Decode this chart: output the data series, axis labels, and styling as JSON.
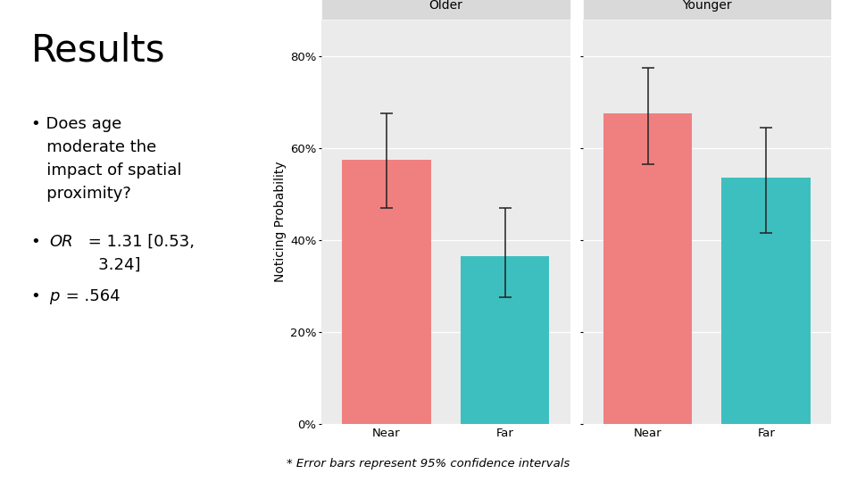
{
  "title": "Results",
  "footnote": "* Error bars represent 95% confidence intervals",
  "facet_labels": [
    "Older",
    "Younger"
  ],
  "x_labels": [
    "Near",
    "Far"
  ],
  "bar_values": {
    "Older": {
      "Near": 0.575,
      "Far": 0.365
    },
    "Younger": {
      "Near": 0.675,
      "Far": 0.535
    }
  },
  "ci_lower": {
    "Older": {
      "Near": 0.47,
      "Far": 0.275
    },
    "Younger": {
      "Near": 0.565,
      "Far": 0.415
    }
  },
  "ci_upper": {
    "Older": {
      "Near": 0.675,
      "Far": 0.47
    },
    "Younger": {
      "Near": 0.775,
      "Far": 0.645
    }
  },
  "color_near": "#F08080",
  "color_far": "#3DBFBF",
  "panel_bg": "#EBEBEB",
  "facet_bg": "#D9D9D9",
  "fig_bg": "#FFFFFF",
  "ylabel": "Noticing Probability",
  "ylim": [
    0.0,
    0.88
  ],
  "yticks": [
    0.0,
    0.2,
    0.4,
    0.6,
    0.8
  ],
  "ytick_labels": [
    "0%",
    "20%",
    "40%",
    "60%",
    "80%"
  ],
  "title_fontsize": 30,
  "bullet_fontsize": 13,
  "axis_fontsize": 9.5,
  "ylabel_fontsize": 10
}
